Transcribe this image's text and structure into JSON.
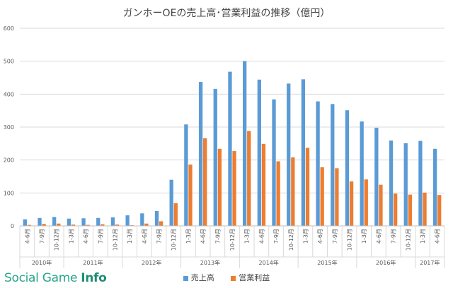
{
  "chart_data": {
    "type": "bar",
    "title": "ガンホーOEの売上高･営業利益の推移（億円）",
    "categories": [
      "4-6月",
      "7-9月",
      "10-12月",
      "1-3月",
      "4-6月",
      "7-9月",
      "10-12月",
      "1-3月",
      "4-6月",
      "7-9月",
      "10-12月",
      "1-3月",
      "4-6月",
      "7-9月",
      "10-12月",
      "1-3月",
      "4-6月",
      "7-9月",
      "10-12月",
      "1-3月",
      "4-6月",
      "7-9月",
      "10-12月",
      "1-3月",
      "4-6月",
      "7-9月",
      "10-12月",
      "1-3月",
      "4-6月"
    ],
    "year_groups": [
      {
        "label": "2010年",
        "count": 3
      },
      {
        "label": "2011年",
        "count": 4
      },
      {
        "label": "2012年",
        "count": 4
      },
      {
        "label": "2013年",
        "count": 4
      },
      {
        "label": "2014年",
        "count": 4
      },
      {
        "label": "2015年",
        "count": 4
      },
      {
        "label": "2016年",
        "count": 4
      },
      {
        "label": "2017年",
        "count": 2
      }
    ],
    "series": [
      {
        "name": "売上高",
        "color": "#5b9bd5",
        "values": [
          20,
          24,
          27,
          22,
          23,
          24,
          26,
          32,
          38,
          45,
          140,
          308,
          437,
          416,
          468,
          500,
          444,
          384,
          432,
          445,
          378,
          370,
          351,
          317,
          298,
          259,
          251,
          258,
          234
        ]
      },
      {
        "name": "営業利益",
        "color": "#ed7d31",
        "values": [
          3,
          6,
          7,
          4,
          3,
          5,
          4,
          2,
          7,
          14,
          69,
          186,
          266,
          234,
          227,
          288,
          249,
          196,
          208,
          237,
          178,
          175,
          135,
          141,
          125,
          98,
          95,
          101,
          94
        ]
      }
    ],
    "yticks": [
      "0",
      "100",
      "200",
      "300",
      "400",
      "500",
      "600"
    ],
    "ylim": [
      0,
      600
    ],
    "grid": true,
    "legend_position": "bottom"
  },
  "watermark": {
    "light": "Social Game ",
    "bold": "Info"
  }
}
